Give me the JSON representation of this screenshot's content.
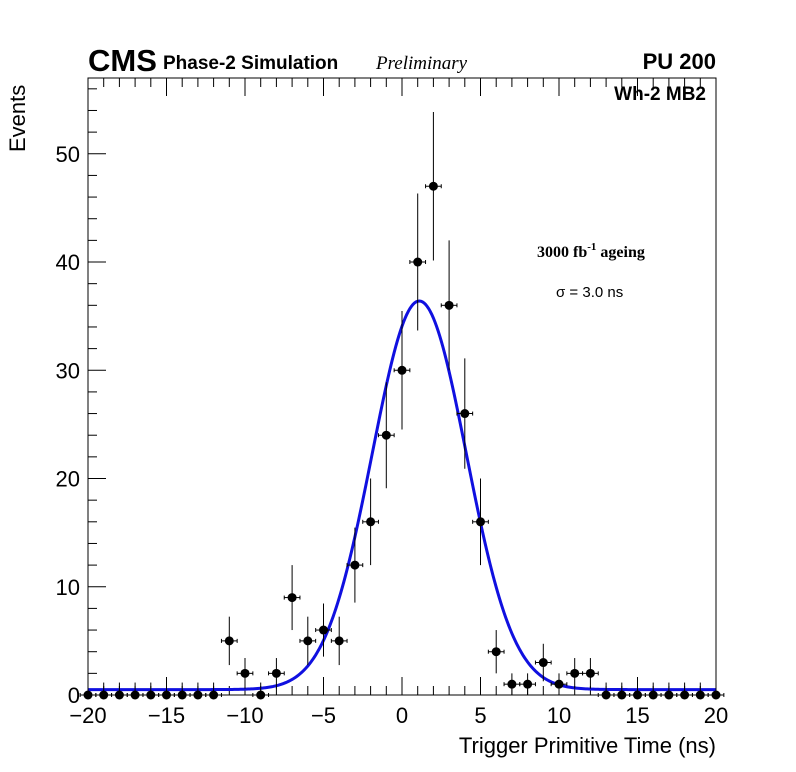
{
  "header": {
    "experiment": "CMS",
    "subtitle": "Phase-2 Simulation",
    "status": "Preliminary",
    "pileup": "PU 200"
  },
  "annotations": {
    "chamber": "Wh-2 MB2",
    "ageing_prefix": "3000 fb",
    "ageing_exp": "-1",
    "ageing_suffix": " ageing",
    "sigma_text": "σ = 3.0 ns"
  },
  "colors": {
    "fit": "#1010e0",
    "points": "#000000",
    "frame": "#000000"
  },
  "chart_data": {
    "type": "scatter",
    "title": "",
    "xlabel": "Trigger Primitive Time (ns)",
    "ylabel": "Events",
    "xlim": [
      -20,
      20
    ],
    "ylim": [
      0,
      57
    ],
    "x_ticks": [
      -20,
      -15,
      -10,
      -5,
      0,
      5,
      10,
      15,
      20
    ],
    "x_tick_labels": [
      "−20",
      "−15",
      "−10",
      "−5",
      "0",
      "5",
      "10",
      "15",
      "20"
    ],
    "y_ticks": [
      0,
      10,
      20,
      30,
      40,
      50
    ],
    "y_tick_labels": [
      "0",
      "10",
      "20",
      "30",
      "40",
      "50"
    ],
    "bin_width": 1,
    "series": [
      {
        "name": "Simulation",
        "x": [
          -20,
          -19,
          -18,
          -17,
          -16,
          -15,
          -14,
          -13,
          -12,
          -11,
          -10,
          -9,
          -8,
          -7,
          -6,
          -5,
          -4,
          -3,
          -2,
          -1,
          0,
          1,
          2,
          3,
          4,
          5,
          6,
          7,
          8,
          9,
          10,
          11,
          12,
          13,
          14,
          15,
          16,
          17,
          18,
          19,
          20
        ],
        "y": [
          0,
          0,
          0,
          0,
          0,
          0,
          0,
          0,
          0,
          5,
          2,
          0,
          2,
          9,
          5,
          6,
          5,
          12,
          16,
          24,
          30,
          40,
          47,
          36,
          26,
          16,
          4,
          1,
          1,
          3,
          1,
          2,
          2,
          0,
          0,
          0,
          0,
          0,
          0,
          0,
          0
        ]
      }
    ],
    "fit": {
      "name": "Gaussian fit",
      "mean": 1.1,
      "sigma": 3.0,
      "amplitude": 35.9,
      "baseline": 0.5
    }
  }
}
